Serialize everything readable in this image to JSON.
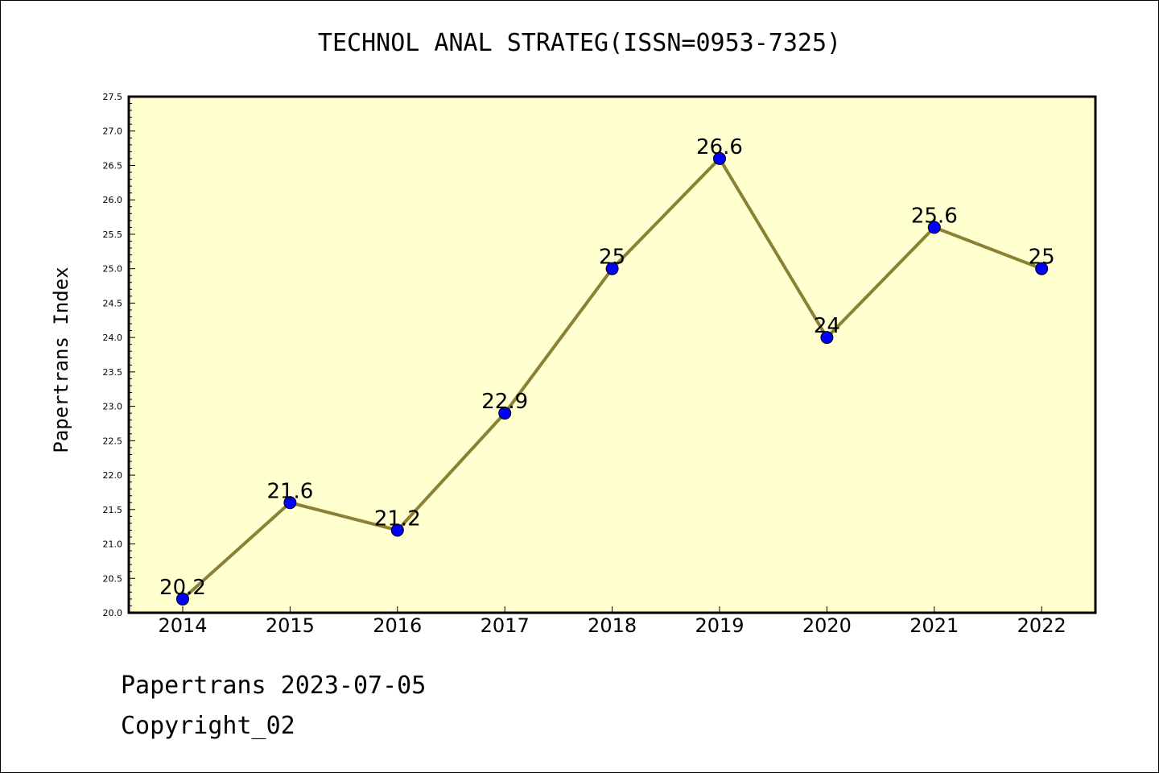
{
  "chart_data": {
    "type": "line",
    "title": "TECHNOL ANAL STRATEG(ISSN=0953-7325)",
    "xlabel": "",
    "ylabel": "Papertrans Index",
    "categories": [
      "2014",
      "2015",
      "2016",
      "2017",
      "2018",
      "2019",
      "2020",
      "2021",
      "2022"
    ],
    "values": [
      20.2,
      21.6,
      21.2,
      22.9,
      25,
      26.6,
      24,
      25.6,
      25
    ],
    "data_labels": [
      "20.2",
      "21.6",
      "21.2",
      "22.9",
      "25",
      "26.6",
      "24",
      "25.6",
      "25"
    ],
    "ylim": [
      20.0,
      27.5
    ],
    "yticks": [
      "20.0",
      "20.5",
      "21.0",
      "21.5",
      "22.0",
      "22.5",
      "23.0",
      "23.5",
      "24.0",
      "24.5",
      "25.0",
      "25.5",
      "26.0",
      "26.5",
      "27.0",
      "27.5"
    ],
    "grid": false,
    "colors": {
      "plot_background": "#ffffd0",
      "line": "#8b8036",
      "marker": "#0000ff"
    }
  },
  "footer": {
    "line1": "Papertrans 2023-07-05",
    "line2": "Copyright_02"
  }
}
